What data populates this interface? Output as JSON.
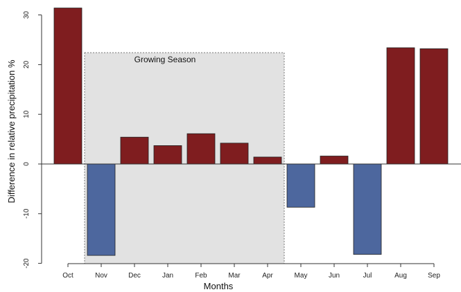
{
  "chart_data": {
    "type": "bar",
    "title": "",
    "xlabel": "Months",
    "ylabel": "Difference in relative precipitation %",
    "categories": [
      "Oct",
      "Nov",
      "Dec",
      "Jan",
      "Feb",
      "Mar",
      "Apr",
      "May",
      "Jun",
      "Jul",
      "Aug",
      "Sep"
    ],
    "values": [
      31.4,
      -18.4,
      5.4,
      3.7,
      6.1,
      4.2,
      1.4,
      -8.7,
      1.6,
      -18.2,
      23.4,
      23.2
    ],
    "ylim": [
      -20,
      32
    ],
    "yticks": [
      -20,
      -10,
      0,
      10,
      20,
      30
    ],
    "grid": false,
    "legend": "none",
    "colors": {
      "positive": "#7f1d1f",
      "negative": "#4d679e",
      "season_fill": "#e2e2e2",
      "season_border": "#777777"
    },
    "annotation": {
      "label": "Growing Season",
      "from_category": "Nov",
      "to_category": "Apr",
      "y_top": 22.4
    }
  }
}
